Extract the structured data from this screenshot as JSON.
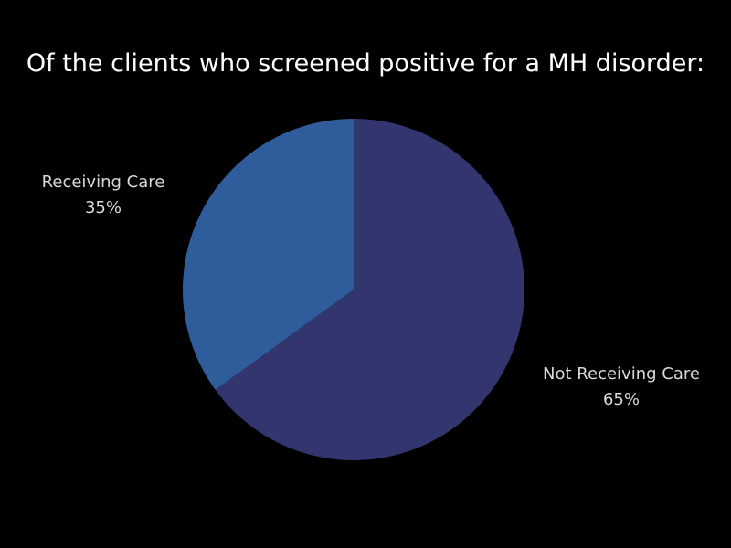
{
  "chart_data": {
    "type": "pie",
    "title": "Of the clients who screened positive for a MH disorder:",
    "slices": [
      {
        "name": "Not Receiving Care",
        "value": 65,
        "label": "65%",
        "color": "#33356e"
      },
      {
        "name": "Receiving Care",
        "value": 35,
        "label": "35%",
        "color": "#2f5d9b"
      }
    ],
    "background": "#000000",
    "label_color": "#d9d9d9"
  }
}
